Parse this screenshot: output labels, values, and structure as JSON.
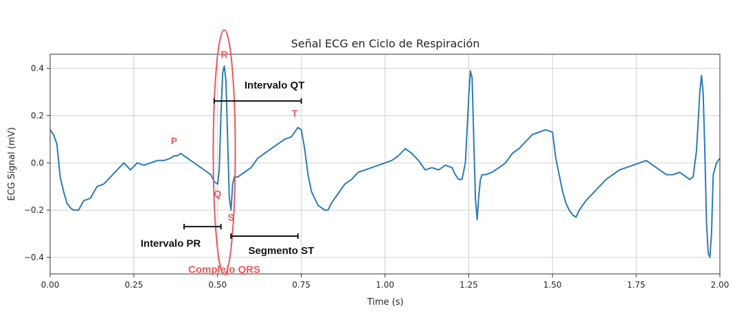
{
  "chart_data": {
    "type": "line",
    "title": "Señal ECG en Ciclo de Respiración",
    "xlabel": "Time (s)",
    "ylabel": "ECG Signal (mV)",
    "xlim": [
      0,
      2
    ],
    "ylim": [
      -0.47,
      0.46
    ],
    "xticks": [
      0.0,
      0.25,
      0.5,
      0.75,
      1.0,
      1.25,
      1.5,
      1.75,
      2.0
    ],
    "xtick_labels": [
      "0.00",
      "0.25",
      "0.50",
      "0.75",
      "1.00",
      "1.25",
      "1.50",
      "1.75",
      "2.00"
    ],
    "yticks": [
      -0.4,
      -0.2,
      0.0,
      0.2,
      0.4
    ],
    "ytick_labels": [
      "−0.4",
      "−0.2",
      "0.0",
      "0.2",
      "0.4"
    ],
    "grid": true,
    "line_color": "#2a7ab8",
    "series": [
      {
        "name": "",
        "x": [
          0.0,
          0.01,
          0.02,
          0.03,
          0.04,
          0.05,
          0.06,
          0.07,
          0.085,
          0.1,
          0.12,
          0.14,
          0.16,
          0.18,
          0.2,
          0.22,
          0.24,
          0.26,
          0.28,
          0.3,
          0.32,
          0.34,
          0.36,
          0.37,
          0.38,
          0.39,
          0.4,
          0.42,
          0.44,
          0.46,
          0.48,
          0.49,
          0.5,
          0.505,
          0.51,
          0.515,
          0.52,
          0.525,
          0.53,
          0.535,
          0.54,
          0.545,
          0.55,
          0.56,
          0.58,
          0.6,
          0.62,
          0.64,
          0.66,
          0.68,
          0.7,
          0.72,
          0.74,
          0.75,
          0.76,
          0.77,
          0.78,
          0.79,
          0.8,
          0.81,
          0.82,
          0.83,
          0.84,
          0.86,
          0.88,
          0.9,
          0.92,
          0.94,
          0.96,
          0.98,
          1.0,
          1.02,
          1.04,
          1.06,
          1.08,
          1.1,
          1.12,
          1.14,
          1.16,
          1.18,
          1.2,
          1.21,
          1.22,
          1.23,
          1.24,
          1.25,
          1.255,
          1.26,
          1.265,
          1.27,
          1.275,
          1.28,
          1.285,
          1.29,
          1.3,
          1.32,
          1.34,
          1.36,
          1.38,
          1.4,
          1.42,
          1.44,
          1.46,
          1.48,
          1.5,
          1.51,
          1.52,
          1.53,
          1.54,
          1.55,
          1.56,
          1.57,
          1.58,
          1.6,
          1.62,
          1.64,
          1.66,
          1.68,
          1.7,
          1.72,
          1.74,
          1.76,
          1.78,
          1.8,
          1.82,
          1.84,
          1.86,
          1.88,
          1.9,
          1.91,
          1.92,
          1.93,
          1.94,
          1.945,
          1.95,
          1.955,
          1.96,
          1.965,
          1.97,
          1.975,
          1.98,
          1.99,
          2.0
        ],
        "y": [
          0.14,
          0.12,
          0.08,
          -0.06,
          -0.12,
          -0.17,
          -0.19,
          -0.2,
          -0.2,
          -0.16,
          -0.15,
          -0.1,
          -0.09,
          -0.06,
          -0.03,
          0.0,
          -0.03,
          0.0,
          -0.01,
          0.0,
          0.01,
          0.01,
          0.02,
          0.03,
          0.03,
          0.04,
          0.03,
          0.01,
          -0.01,
          -0.03,
          -0.05,
          -0.08,
          -0.09,
          -0.03,
          0.2,
          0.38,
          0.41,
          0.35,
          0.1,
          -0.15,
          -0.2,
          -0.09,
          -0.06,
          -0.06,
          -0.04,
          -0.02,
          0.02,
          0.04,
          0.06,
          0.08,
          0.1,
          0.11,
          0.15,
          0.14,
          0.06,
          -0.05,
          -0.12,
          -0.15,
          -0.18,
          -0.19,
          -0.2,
          -0.2,
          -0.17,
          -0.13,
          -0.09,
          -0.07,
          -0.04,
          -0.03,
          -0.02,
          -0.01,
          0.0,
          0.01,
          0.03,
          0.06,
          0.04,
          0.01,
          -0.03,
          -0.02,
          -0.03,
          -0.01,
          -0.02,
          -0.05,
          -0.07,
          -0.07,
          0.0,
          0.28,
          0.39,
          0.36,
          0.1,
          -0.15,
          -0.24,
          -0.14,
          -0.07,
          -0.05,
          -0.05,
          -0.04,
          -0.02,
          0.0,
          0.04,
          0.06,
          0.09,
          0.12,
          0.13,
          0.14,
          0.13,
          0.02,
          -0.05,
          -0.12,
          -0.17,
          -0.2,
          -0.22,
          -0.23,
          -0.2,
          -0.16,
          -0.13,
          -0.1,
          -0.07,
          -0.05,
          -0.03,
          -0.02,
          -0.01,
          0.0,
          0.01,
          -0.01,
          -0.03,
          -0.05,
          -0.05,
          -0.04,
          -0.06,
          -0.07,
          -0.06,
          0.05,
          0.3,
          0.37,
          0.3,
          0.05,
          -0.25,
          -0.38,
          -0.4,
          -0.3,
          -0.05,
          0.0,
          0.02
        ]
      }
    ],
    "annotations": [
      {
        "text": "R",
        "x": 0.52,
        "y": 0.445
      },
      {
        "text": "P",
        "x": 0.37,
        "y": 0.08
      },
      {
        "text": "T",
        "x": 0.73,
        "y": 0.195
      },
      {
        "text": "Q",
        "x": 0.5,
        "y": -0.145
      },
      {
        "text": "S",
        "x": 0.54,
        "y": -0.245
      },
      {
        "text": "Intervalo QT",
        "x1": 0.49,
        "x2": 0.75,
        "y": 0.26,
        "bracket_y": 0.262
      },
      {
        "text": "Intervalo PR",
        "x1": 0.4,
        "x2": 0.51,
        "y": -0.4,
        "bracket_y": -0.27
      },
      {
        "text": "Segmento ST",
        "x1": 0.54,
        "x2": 0.74,
        "y": -0.38,
        "bracket_y": -0.31
      },
      {
        "text": "Complejo QRS",
        "x": 0.52,
        "y": -0.465
      }
    ]
  }
}
